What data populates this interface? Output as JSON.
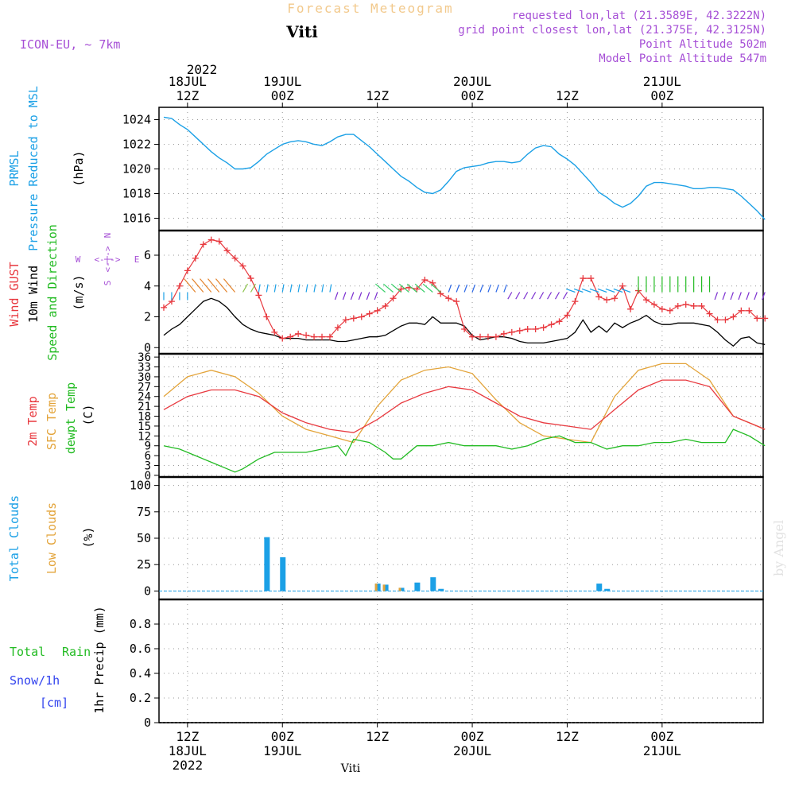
{
  "header": {
    "title": "Forecast Meteogram",
    "location": "Viti",
    "model": "ICON-EU, ~ 7km",
    "requested": "requested lon,lat (21.3589E, 42.3222N)",
    "grid_point": "grid point closest lon,lat (21.375E, 42.3125N)",
    "point_altitude": "Point Altitude 502m",
    "model_altitude": "Model Point Altitude 547m",
    "footer_location": "Viti",
    "watermark": "by Angel"
  },
  "colors": {
    "pressure": "#1ba0e6",
    "gust": "#e8393f",
    "wind": "#000000",
    "temp": "#e8393f",
    "sfc": "#e3a43a",
    "dew": "#22bb22",
    "clouds_total": "#1ba0e6",
    "clouds_low": "#e3a43a",
    "rain": "#22bb22",
    "snow": "#3344ee",
    "meta": "#a64fd6"
  },
  "chart_data": [
    {
      "type": "line",
      "title": "PRMSL Pressure Reduced to MSL",
      "label_lines": [
        "PRMSL",
        "Pressure Reduced to MSL"
      ],
      "ylabel": "(hPa)",
      "ylim": [
        1015,
        1025
      ],
      "yticks": [
        1016,
        1018,
        1020,
        1022,
        1024
      ],
      "x_hours_from": "2022-07-18 09Z",
      "series": [
        {
          "name": "PRMSL",
          "x": [
            0,
            1,
            2,
            3,
            4,
            5,
            6,
            7,
            8,
            9,
            10,
            11,
            12,
            13,
            14,
            15,
            16,
            17,
            18,
            19,
            20,
            21,
            22,
            23,
            24,
            25,
            26,
            27,
            28,
            29,
            30,
            31,
            32,
            33,
            34,
            35,
            36,
            37,
            38,
            39,
            40,
            41,
            42,
            43,
            44,
            45,
            46,
            47,
            48,
            49,
            50,
            51,
            52,
            53,
            54,
            55,
            56,
            57,
            58,
            59,
            60,
            61,
            62,
            63,
            64,
            65,
            66,
            67,
            68,
            69,
            70,
            71,
            72,
            73,
            74,
            75,
            76
          ],
          "values": [
            1024.2,
            1024.1,
            1023.6,
            1023.2,
            1022.6,
            1022.0,
            1021.4,
            1020.9,
            1020.5,
            1020.0,
            1020.0,
            1020.1,
            1020.6,
            1021.2,
            1021.6,
            1022.0,
            1022.2,
            1022.3,
            1022.2,
            1022.0,
            1021.9,
            1022.2,
            1022.6,
            1022.8,
            1022.8,
            1022.3,
            1021.8,
            1021.2,
            1020.6,
            1020.0,
            1019.4,
            1019.0,
            1018.5,
            1018.1,
            1018.0,
            1018.3,
            1019.0,
            1019.8,
            1020.1,
            1020.2,
            1020.3,
            1020.5,
            1020.6,
            1020.6,
            1020.5,
            1020.6,
            1021.2,
            1021.7,
            1021.9,
            1021.8,
            1021.2,
            1020.8,
            1020.3,
            1019.6,
            1018.9,
            1018.1,
            1017.7,
            1017.2,
            1016.9,
            1017.2,
            1017.8,
            1018.6,
            1018.9,
            1018.9,
            1018.8,
            1018.7,
            1018.6,
            1018.4,
            1018.4,
            1018.5,
            1018.5,
            1018.4,
            1018.3,
            1017.8,
            1017.2,
            1016.6,
            1015.9
          ]
        }
      ]
    },
    {
      "type": "line",
      "title": "Wind GUST / 10m Wind Speed and Direction",
      "label_lines": [
        "Wind GUST",
        "10m Wind",
        "Speed and Direction"
      ],
      "ylabel": "(m/s)",
      "compass": [
        "N",
        "W",
        "E",
        "S"
      ],
      "ylim": [
        -0.4,
        7.6
      ],
      "yticks": [
        0,
        2,
        4,
        6
      ],
      "series": [
        {
          "name": "Wind GUST",
          "x": [
            0,
            1,
            2,
            3,
            4,
            5,
            6,
            7,
            8,
            9,
            10,
            11,
            12,
            13,
            14,
            15,
            16,
            17,
            18,
            19,
            20,
            21,
            22,
            23,
            24,
            25,
            26,
            27,
            28,
            29,
            30,
            31,
            32,
            33,
            34,
            35,
            36,
            37,
            38,
            39,
            40,
            41,
            42,
            43,
            44,
            45,
            46,
            47,
            48,
            49,
            50,
            51,
            52,
            53,
            54,
            55,
            56,
            57,
            58,
            59,
            60,
            61,
            62,
            63,
            64,
            65,
            66,
            67,
            68,
            69,
            70,
            71,
            72,
            73,
            74,
            75,
            76
          ],
          "values": [
            2.6,
            3.0,
            4.0,
            5.0,
            5.8,
            6.7,
            7.0,
            6.9,
            6.3,
            5.8,
            5.3,
            4.5,
            3.4,
            2.0,
            1.0,
            0.6,
            0.7,
            0.9,
            0.8,
            0.7,
            0.7,
            0.7,
            1.3,
            1.8,
            1.9,
            2.0,
            2.2,
            2.4,
            2.7,
            3.2,
            3.8,
            3.9,
            3.8,
            4.4,
            4.2,
            3.5,
            3.2,
            3.0,
            1.2,
            0.7,
            0.7,
            0.7,
            0.7,
            0.9,
            1.0,
            1.1,
            1.2,
            1.2,
            1.3,
            1.5,
            1.7,
            2.1,
            3.0,
            4.5,
            4.5,
            3.3,
            3.1,
            3.2,
            4.0,
            2.5,
            3.7,
            3.1,
            2.8,
            2.5,
            2.4,
            2.7,
            2.8,
            2.7,
            2.7,
            2.2,
            1.8,
            1.8,
            2.0,
            2.4,
            2.4,
            1.9,
            1.9
          ]
        },
        {
          "name": "10m Wind",
          "x": [
            0,
            1,
            2,
            3,
            4,
            5,
            6,
            7,
            8,
            9,
            10,
            11,
            12,
            13,
            14,
            15,
            16,
            17,
            18,
            19,
            20,
            21,
            22,
            23,
            24,
            25,
            26,
            27,
            28,
            29,
            30,
            31,
            32,
            33,
            34,
            35,
            36,
            37,
            38,
            39,
            40,
            41,
            42,
            43,
            44,
            45,
            46,
            47,
            48,
            49,
            50,
            51,
            52,
            53,
            54,
            55,
            56,
            57,
            58,
            59,
            60,
            61,
            62,
            63,
            64,
            65,
            66,
            67,
            68,
            69,
            70,
            71,
            72,
            73,
            74,
            75,
            76
          ],
          "values": [
            0.8,
            1.2,
            1.5,
            2.0,
            2.5,
            3.0,
            3.2,
            3.0,
            2.6,
            2.0,
            1.5,
            1.2,
            1.0,
            0.9,
            0.8,
            0.6,
            0.6,
            0.6,
            0.5,
            0.5,
            0.5,
            0.5,
            0.4,
            0.4,
            0.5,
            0.6,
            0.7,
            0.7,
            0.8,
            1.1,
            1.4,
            1.6,
            1.6,
            1.5,
            2.0,
            1.6,
            1.6,
            1.6,
            1.4,
            0.8,
            0.5,
            0.6,
            0.7,
            0.7,
            0.6,
            0.4,
            0.3,
            0.3,
            0.3,
            0.4,
            0.5,
            0.6,
            1.0,
            1.8,
            1.0,
            1.4,
            1.0,
            1.6,
            1.3,
            1.6,
            1.8,
            2.1,
            1.7,
            1.5,
            1.5,
            1.6,
            1.6,
            1.6,
            1.5,
            1.4,
            1.0,
            0.5,
            0.1,
            0.6,
            0.7,
            0.3,
            0.2
          ]
        }
      ]
    },
    {
      "type": "line",
      "title": "2m Temp / SFC Temp / dewpt Temp",
      "label_lines": [
        "2m Temp",
        "SFC Temp",
        "dewpt Temp"
      ],
      "ylabel": "(C)",
      "ylim": [
        -0.5,
        37
      ],
      "yticks": [
        0,
        3,
        6,
        9,
        12,
        15,
        18,
        21,
        24,
        27,
        30,
        33,
        36
      ],
      "series": [
        {
          "name": "2m Temp",
          "x": [
            0,
            3,
            6,
            9,
            12,
            15,
            18,
            21,
            24,
            27,
            30,
            33,
            36,
            39,
            42,
            45,
            48,
            51,
            54,
            57,
            60,
            63,
            66,
            69,
            72,
            75,
            76
          ],
          "values": [
            20,
            24,
            26,
            26,
            24,
            19,
            16,
            14,
            13,
            17,
            22,
            25,
            27,
            26,
            22,
            18,
            16,
            15,
            14,
            20,
            26,
            29,
            29,
            27,
            18,
            15,
            14
          ]
        },
        {
          "name": "SFC Temp",
          "x": [
            0,
            3,
            6,
            9,
            12,
            15,
            18,
            21,
            24,
            27,
            30,
            33,
            36,
            39,
            42,
            45,
            48,
            51,
            54,
            57,
            60,
            63,
            66,
            69,
            72,
            75,
            76
          ],
          "values": [
            24,
            30,
            32,
            30,
            25,
            18,
            14,
            12,
            10,
            21,
            29,
            32,
            33,
            31,
            23,
            16,
            12,
            11,
            10,
            24,
            32,
            34,
            34,
            29,
            18,
            15,
            14
          ]
        },
        {
          "name": "dewpt Temp",
          "x": [
            0,
            2,
            4,
            6,
            8,
            9,
            10,
            12,
            14,
            16,
            18,
            20,
            22,
            23,
            24,
            26,
            28,
            29,
            30,
            32,
            34,
            36,
            38,
            40,
            42,
            44,
            46,
            48,
            50,
            52,
            54,
            56,
            58,
            60,
            62,
            64,
            66,
            68,
            70,
            71,
            72,
            74,
            76
          ],
          "values": [
            9,
            8,
            6,
            4,
            2,
            1,
            2,
            5,
            7,
            7,
            7,
            8,
            9,
            6,
            11,
            10,
            7,
            5,
            5,
            9,
            9,
            10,
            9,
            9,
            9,
            8,
            9,
            11,
            12,
            10,
            10,
            8,
            9,
            9,
            10,
            10,
            11,
            10,
            10,
            10,
            14,
            12,
            9
          ]
        }
      ]
    },
    {
      "type": "bar",
      "title": "Total Clouds / Low Clouds",
      "label_lines": [
        "Total Clouds",
        "Low Clouds"
      ],
      "ylabel": "(%)",
      "ylim": [
        -8,
        108
      ],
      "yticks": [
        0,
        25,
        50,
        75,
        100
      ],
      "series": [
        {
          "name": "Total Clouds",
          "x": [
            13,
            15,
            27,
            28,
            30,
            32,
            34,
            35,
            55,
            56
          ],
          "values": [
            51,
            32,
            7,
            6,
            3,
            8,
            13,
            2,
            7,
            2
          ]
        },
        {
          "name": "Low Clouds",
          "x": [
            27,
            28,
            30
          ],
          "values": [
            7,
            6,
            3
          ]
        }
      ]
    },
    {
      "type": "bar",
      "title": "1hr Precip",
      "label_lines": [
        "Total",
        "Rain",
        "Snow/1h",
        "[cm]"
      ],
      "ylabel": "1hr Precip (mm)",
      "ylim": [
        0,
        1.0
      ],
      "yticks": [
        0,
        0.2,
        0.4,
        0.6,
        0.8
      ],
      "series": [
        {
          "name": "Total Rain",
          "x": [],
          "values": []
        },
        {
          "name": "Snow/1h",
          "x": [],
          "values": []
        }
      ]
    }
  ],
  "x_axis": {
    "top_year": "2022",
    "ticks": [
      {
        "hour": 3,
        "top": [
          "18JUL",
          "12Z"
        ],
        "bottom": [
          "12Z",
          "18JUL",
          "2022"
        ]
      },
      {
        "hour": 15,
        "top": [
          "19JUL",
          "00Z"
        ],
        "bottom": [
          "00Z",
          "19JUL"
        ]
      },
      {
        "hour": 27,
        "top": [
          "12Z"
        ],
        "bottom": [
          "12Z"
        ]
      },
      {
        "hour": 39,
        "top": [
          "20JUL",
          "00Z"
        ],
        "bottom": [
          "00Z",
          "20JUL"
        ]
      },
      {
        "hour": 51,
        "top": [
          "12Z"
        ],
        "bottom": [
          "12Z"
        ]
      },
      {
        "hour": 63,
        "top": [
          "21JUL",
          "00Z"
        ],
        "bottom": [
          "00Z",
          "21JUL"
        ]
      }
    ]
  }
}
